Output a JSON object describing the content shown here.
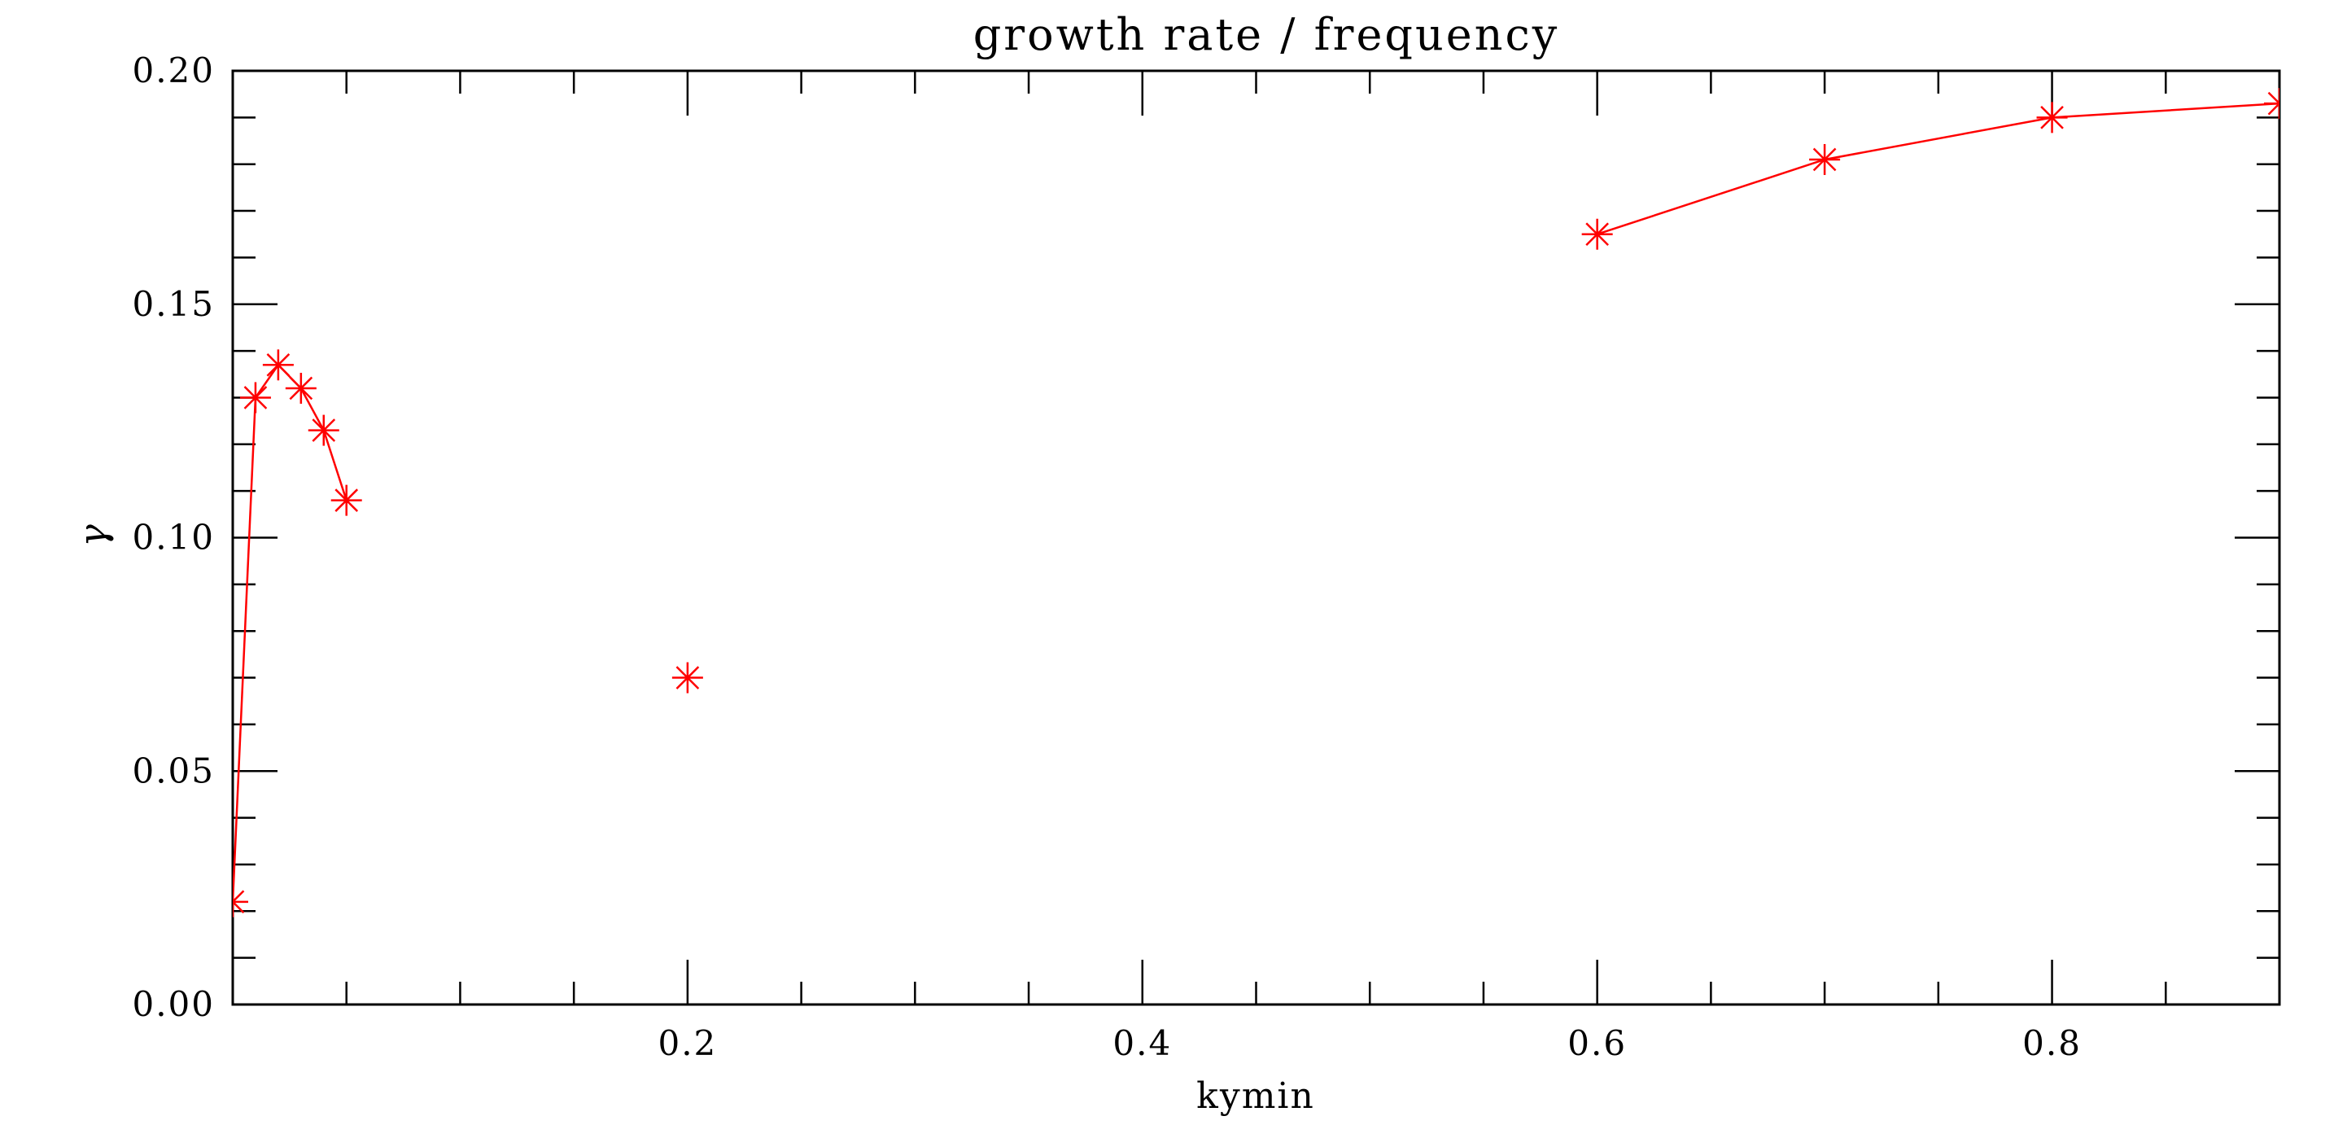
{
  "chart_data": {
    "type": "line",
    "title": "growth rate / frequency",
    "xlabel": "kymin",
    "ylabel": "γ",
    "xlim": [
      0.0,
      0.9
    ],
    "ylim": [
      0.0,
      0.2
    ],
    "x_major_ticks": [
      0.2,
      0.4,
      0.6,
      0.8
    ],
    "x_tick_labels": [
      "0.2",
      "0.4",
      "0.6",
      "0.8"
    ],
    "x_minor_step": 0.05,
    "y_major_ticks": [
      0.0,
      0.05,
      0.1,
      0.15,
      0.2
    ],
    "y_tick_labels": [
      "0.00",
      "0.05",
      "0.10",
      "0.15",
      "0.20"
    ],
    "y_minor_step": 0.01,
    "grid": false,
    "line_color": "#ff0000",
    "axis_color": "#000000",
    "marker": "asterisk",
    "segments": [
      {
        "x": [
          0.0,
          0.01,
          0.02,
          0.03,
          0.04,
          0.05
        ],
        "y": [
          0.022,
          0.13,
          0.137,
          0.132,
          0.123,
          0.108
        ]
      },
      {
        "x": [
          0.2
        ],
        "y": [
          0.07
        ]
      },
      {
        "x": [
          0.6,
          0.7,
          0.8,
          0.9
        ],
        "y": [
          0.165,
          0.181,
          0.19,
          0.193
        ]
      }
    ]
  }
}
